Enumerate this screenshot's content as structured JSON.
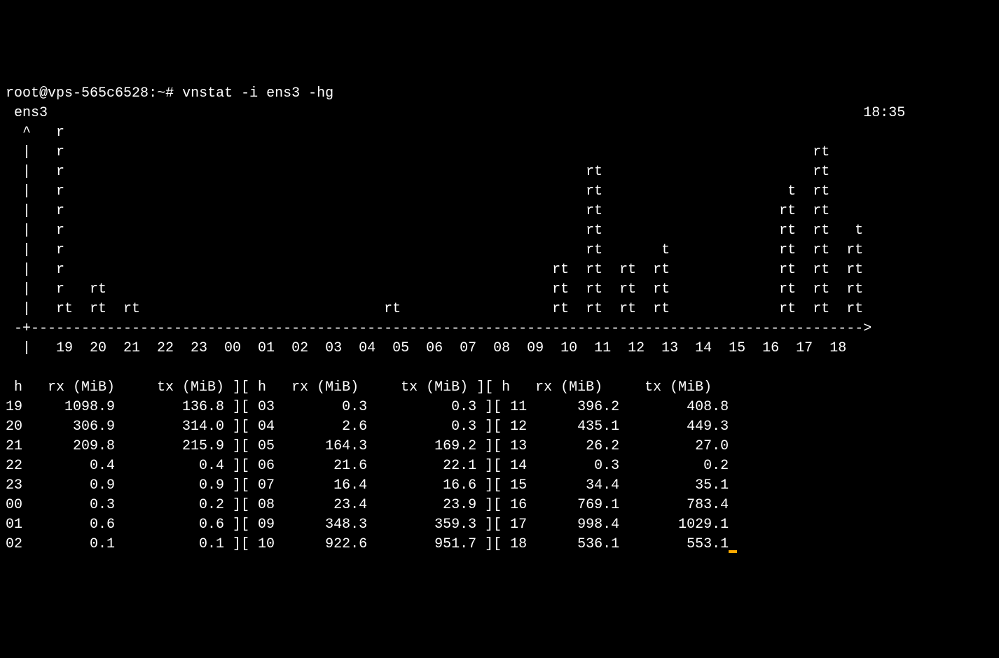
{
  "colors": {
    "background": "#000000",
    "text": "#ffffff",
    "cursor": "#ffaa00"
  },
  "prompt": {
    "user": "root",
    "host": "vps-565c6528",
    "path": "~",
    "symbol": "#",
    "command": "vnstat -i ens3 -hg"
  },
  "header": {
    "interface": "ens3",
    "time": "18:35"
  },
  "chart": {
    "type": "ascii-bar",
    "hours": [
      "19",
      "20",
      "21",
      "22",
      "23",
      "00",
      "01",
      "02",
      "03",
      "04",
      "05",
      "06",
      "07",
      "08",
      "09",
      "10",
      "11",
      "12",
      "13",
      "14",
      "15",
      "16",
      "17",
      "18"
    ],
    "chart_rows": [
      "  ^   r",
      "  |   r                                                                                         rt",
      "  |   r                                                              rt                         rt",
      "  |   r                                                              rt                      t  rt",
      "  |   r                                                              rt                     rt  rt",
      "  |   r                                                              rt                     rt  rt   t",
      "  |   r                                                              rt       t             rt  rt  rt",
      "  |   r                                                          rt  rt  rt  rt             rt  rt  rt",
      "  |   r   rt                                                     rt  rt  rt  rt             rt  rt  rt",
      "  |   rt  rt  rt                             rt                  rt  rt  rt  rt             rt  rt  rt"
    ],
    "axis_line": " -+--------------------------------------------------------------------------------------------------->",
    "axis_labels": "  |   19  20  21  22  23  00  01  02  03  04  05  06  07  08  09  10  11  12  13  14  15  16  17  18"
  },
  "table": {
    "col_sep": "][",
    "headers": {
      "h": "h",
      "rx": "rx (MiB)",
      "tx": "tx (MiB)"
    },
    "rows": [
      {
        "c1": {
          "h": "19",
          "rx": "1098.9",
          "tx": "136.8"
        },
        "c2": {
          "h": "03",
          "rx": "0.3",
          "tx": "0.3"
        },
        "c3": {
          "h": "11",
          "rx": "396.2",
          "tx": "408.8"
        }
      },
      {
        "c1": {
          "h": "20",
          "rx": "306.9",
          "tx": "314.0"
        },
        "c2": {
          "h": "04",
          "rx": "2.6",
          "tx": "0.3"
        },
        "c3": {
          "h": "12",
          "rx": "435.1",
          "tx": "449.3"
        }
      },
      {
        "c1": {
          "h": "21",
          "rx": "209.8",
          "tx": "215.9"
        },
        "c2": {
          "h": "05",
          "rx": "164.3",
          "tx": "169.2"
        },
        "c3": {
          "h": "13",
          "rx": "26.2",
          "tx": "27.0"
        }
      },
      {
        "c1": {
          "h": "22",
          "rx": "0.4",
          "tx": "0.4"
        },
        "c2": {
          "h": "06",
          "rx": "21.6",
          "tx": "22.1"
        },
        "c3": {
          "h": "14",
          "rx": "0.3",
          "tx": "0.2"
        }
      },
      {
        "c1": {
          "h": "23",
          "rx": "0.9",
          "tx": "0.9"
        },
        "c2": {
          "h": "07",
          "rx": "16.4",
          "tx": "16.6"
        },
        "c3": {
          "h": "15",
          "rx": "34.4",
          "tx": "35.1"
        }
      },
      {
        "c1": {
          "h": "00",
          "rx": "0.3",
          "tx": "0.2"
        },
        "c2": {
          "h": "08",
          "rx": "23.4",
          "tx": "23.9"
        },
        "c3": {
          "h": "16",
          "rx": "769.1",
          "tx": "783.4"
        }
      },
      {
        "c1": {
          "h": "01",
          "rx": "0.6",
          "tx": "0.6"
        },
        "c2": {
          "h": "09",
          "rx": "348.3",
          "tx": "359.3"
        },
        "c3": {
          "h": "17",
          "rx": "998.4",
          "tx": "1029.1"
        }
      },
      {
        "c1": {
          "h": "02",
          "rx": "0.1",
          "tx": "0.1"
        },
        "c2": {
          "h": "10",
          "rx": "922.6",
          "tx": "951.7"
        },
        "c3": {
          "h": "18",
          "rx": "536.1",
          "tx": "553.1"
        }
      }
    ]
  }
}
